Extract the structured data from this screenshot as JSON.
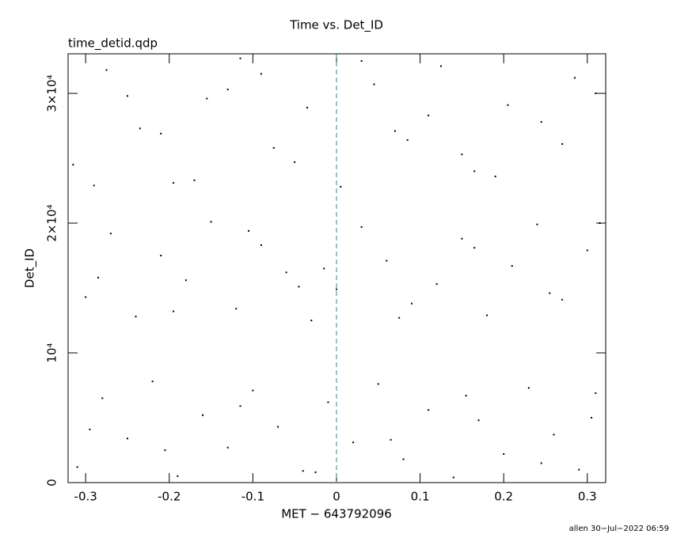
{
  "chart_data": {
    "type": "scatter",
    "title": "Time vs. Det_ID",
    "subtitle": "time_detid.qdp",
    "x_label": "MET − 643792096",
    "y_label": "Det_ID",
    "footer": "allen 30−Jul−2022 06:59",
    "xlim": [
      -0.321,
      0.322
    ],
    "ylim": [
      0,
      33050
    ],
    "xticks": [
      -0.3,
      -0.2,
      -0.1,
      0,
      0.1,
      0.2,
      0.3
    ],
    "yticks": [
      0,
      {
        "value": 10000,
        "label": "10⁴"
      },
      {
        "value": 20000,
        "label": "2×10⁴"
      },
      {
        "value": 30000,
        "label": "3×10⁴"
      }
    ],
    "vline": 0,
    "vline_color": "#1a8fa0",
    "color": "#000000",
    "series": [
      {
        "name": "Det_ID",
        "x": [
          -0.31,
          -0.28,
          -0.25,
          -0.22,
          -0.19,
          -0.16,
          -0.13,
          -0.1,
          -0.07,
          -0.04,
          -0.01,
          0.02,
          0.05,
          0.08,
          0.11,
          0.14,
          0.17,
          0.2,
          0.23,
          0.26,
          0.29,
          0.31,
          -0.295,
          -0.205,
          -0.115,
          -0.025,
          0.065,
          0.155,
          0.245,
          0.305,
          -0.3,
          -0.27,
          -0.24,
          -0.21,
          -0.18,
          -0.15,
          -0.12,
          -0.09,
          -0.06,
          -0.03,
          0.0,
          0.03,
          0.06,
          0.09,
          0.12,
          0.15,
          0.18,
          0.21,
          0.24,
          0.27,
          0.3,
          -0.285,
          -0.195,
          -0.105,
          -0.015,
          0.075,
          0.165,
          0.255,
          0.315,
          -0.045,
          -0.315,
          -0.275,
          -0.235,
          -0.195,
          -0.155,
          -0.115,
          -0.075,
          -0.035,
          0.005,
          0.045,
          0.085,
          0.125,
          0.165,
          0.205,
          0.245,
          0.285,
          -0.29,
          -0.21,
          -0.13,
          -0.05,
          0.03,
          0.11,
          0.19,
          0.27,
          -0.25,
          -0.17,
          -0.09,
          0.07,
          0.15,
          0.31
        ],
        "values": [
          1200,
          6500,
          3400,
          7800,
          500,
          5200,
          2700,
          7100,
          4300,
          900,
          6200,
          3100,
          7600,
          1800,
          5600,
          400,
          4800,
          2200,
          7300,
          3700,
          1000,
          6900,
          4100,
          2500,
          5900,
          800,
          3300,
          6700,
          1500,
          5000,
          14300,
          19200,
          12800,
          17500,
          15600,
          20100,
          13400,
          18300,
          16200,
          12500,
          14900,
          19700,
          17100,
          13800,
          15300,
          18800,
          12900,
          16700,
          19900,
          14100,
          17900,
          15800,
          13200,
          19400,
          16500,
          12700,
          18100,
          14600,
          20000,
          15100,
          24500,
          31800,
          27300,
          23100,
          29600,
          32700,
          25800,
          28900,
          22800,
          30700,
          26400,
          32100,
          24000,
          29100,
          27800,
          31200,
          22900,
          26900,
          30300,
          24700,
          32500,
          28300,
          23600,
          26100,
          29800,
          23300,
          31500,
          27100,
          25300,
          30000
        ]
      }
    ]
  }
}
